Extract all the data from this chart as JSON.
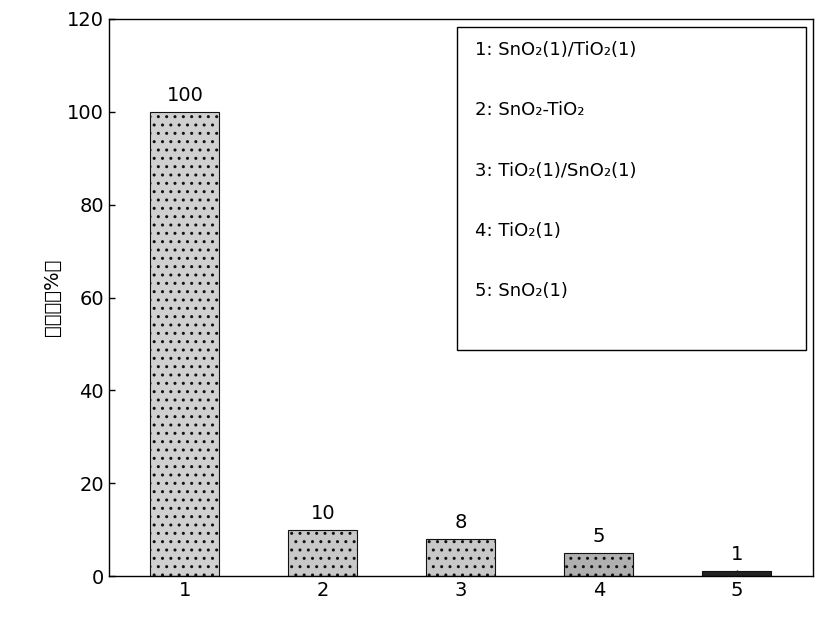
{
  "categories": [
    "1",
    "2",
    "3",
    "4",
    "5"
  ],
  "values": [
    100,
    10,
    8,
    5,
    1
  ],
  "bar_colors": [
    "#d0d0d0",
    "#c8c8c8",
    "#c8c8c8",
    "#b0b0b0",
    "#222222"
  ],
  "bar_edgecolor": "#111111",
  "bar_hatch": "..",
  "ylabel": "转化率（%）",
  "ylim": [
    0,
    120
  ],
  "yticks": [
    0,
    20,
    40,
    60,
    80,
    100,
    120
  ],
  "legend_lines": [
    "1: SnO₂(1)/TiO₂(1)",
    "2: SnO₂-TiO₂",
    "3: TiO₂(1)/SnO₂(1)",
    "4: TiO₂(1)",
    "5: SnO₂(1)"
  ],
  "bar_width": 0.5,
  "figsize": [
    8.38,
    6.33
  ],
  "dpi": 100,
  "background_color": "#ffffff",
  "tick_fontsize": 14,
  "annotation_fontsize": 14,
  "legend_fontsize": 13,
  "ylabel_fontsize": 14
}
